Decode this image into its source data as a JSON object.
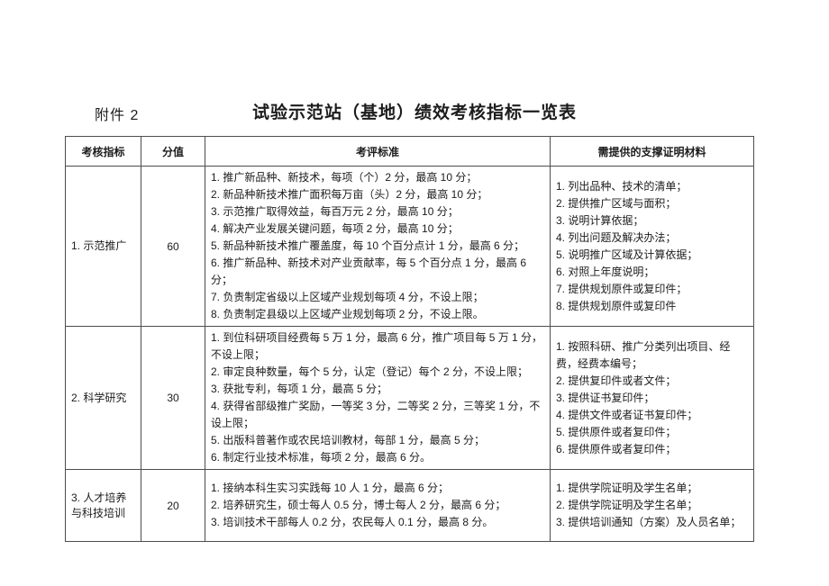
{
  "doc": {
    "attachment_label": "附件 2",
    "title": "试验示范站（基地）绩效考核指标一览表"
  },
  "table": {
    "headers": [
      "考核指标",
      "分值",
      "考评标准",
      "需提供的支撑证明材料"
    ],
    "rows": [
      {
        "indicator": "1. 示范推广",
        "score": "60",
        "criteria": [
          "1. 推广新品种、新技术，每项（个）2 分，最高 10 分；",
          "2. 新品种新技术推广面积每万亩（头）2 分，最高 10 分；",
          "3. 示范推广取得效益，每百万元 2 分，最高 10 分；",
          "4. 解决产业发展关键问题，每项 2 分，最高 10 分；",
          "5. 新品种新技术推广覆盖度，每 10 个百分点计 1 分，最高 6 分；",
          "6. 推广新品种、新技术对产业贡献率，每 5 个百分点 1 分，最高 6 分；",
          "7. 负责制定省级以上区域产业规划每项 4 分，不设上限；",
          "8. 负责制定县级以上区域产业规划每项 2 分，不设上限。"
        ],
        "materials": [
          "1. 列出品种、技术的清单；",
          "2. 提供推广区域与面积；",
          "3. 说明计算依据；",
          "4. 列出问题及解决办法；",
          "5. 说明推广区域及计算依据；",
          "6. 对照上年度说明；",
          "7. 提供规划原件或复印件；",
          "8. 提供规划原件或复印件"
        ]
      },
      {
        "indicator": "2. 科学研究",
        "score": "30",
        "criteria": [
          "1. 到位科研项目经费每 5 万 1 分，最高 6 分，推广项目每 5 万 1 分，不设上限；",
          "2. 审定良种数量，每个 5 分，认定（登记）每个 2 分，不设上限；",
          "3. 获批专利，每项 1 分，最高 5 分；",
          "4. 获得省部级推广奖励，一等奖 3 分，二等奖 2 分，三等奖 1 分，不设上限；",
          "5. 出版科普著作或农民培训教材，每部 1 分，最高 5 分；",
          "6. 制定行业技术标准，每项 2 分，最高 6 分。"
        ],
        "materials": [
          "1. 按照科研、推广分类列出项目、经费，经费本编号；",
          "2. 提供复印件或者文件；",
          "3. 提供证书复印件；",
          "4. 提供文件或者证书复印件；",
          "5. 提供原件或者复印件；",
          "6. 提供原件或者复印件；"
        ]
      },
      {
        "indicator": "3. 人才培养与科技培训",
        "score": "20",
        "criteria": [
          "1. 接纳本科生实习实践每 10 人 1 分，最高 6 分；",
          "2. 培养研究生，硕士每人 0.5 分，博士每人 2 分，最高 6 分；",
          "3. 培训技术干部每人 0.2 分，农民每人 0.1 分，最高 8 分。"
        ],
        "materials": [
          "1. 提供学院证明及学生名单；",
          "2. 提供学院证明及学生名单；",
          "3. 提供培训通知（方案）及人员名单；"
        ]
      }
    ]
  }
}
